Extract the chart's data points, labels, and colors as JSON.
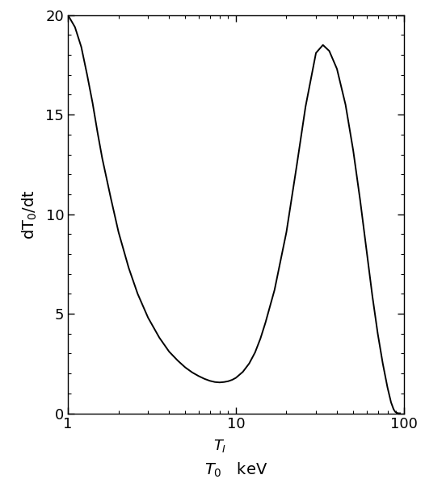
{
  "title": "",
  "ylabel": "dT$_0$/dt",
  "xlim_log": [
    1,
    100
  ],
  "ylim": [
    0,
    20
  ],
  "yticks": [
    0,
    5,
    10,
    15,
    20
  ],
  "xticks": [
    1,
    10,
    100
  ],
  "xticklabels": [
    "1",
    "10",
    "100"
  ],
  "TI_x": 8.0,
  "curve_color": "#000000",
  "background_color": "#ffffff",
  "curve_points_x": [
    1.0,
    1.1,
    1.2,
    1.3,
    1.4,
    1.5,
    1.6,
    1.8,
    2.0,
    2.3,
    2.6,
    3.0,
    3.5,
    4.0,
    4.5,
    5.0,
    5.5,
    6.0,
    6.5,
    7.0,
    7.5,
    8.0,
    8.5,
    9.0,
    9.5,
    10.0,
    11.0,
    12.0,
    13.0,
    14.0,
    15.0,
    17.0,
    20.0,
    23.0,
    26.0,
    30.0,
    33.0,
    36.0,
    40.0,
    45.0,
    50.0,
    55.0,
    60.0,
    65.0,
    70.0,
    75.0,
    80.0,
    84.0,
    87.0,
    89.0,
    91.0,
    93.0,
    95.0
  ],
  "curve_points_y": [
    20.0,
    19.4,
    18.4,
    17.0,
    15.6,
    14.1,
    12.8,
    10.8,
    9.1,
    7.3,
    6.0,
    4.8,
    3.8,
    3.1,
    2.65,
    2.3,
    2.05,
    1.87,
    1.73,
    1.63,
    1.57,
    1.55,
    1.57,
    1.61,
    1.68,
    1.78,
    2.08,
    2.5,
    3.05,
    3.75,
    4.55,
    6.2,
    9.1,
    12.4,
    15.4,
    18.1,
    18.5,
    18.2,
    17.3,
    15.5,
    13.2,
    10.7,
    8.2,
    5.9,
    4.0,
    2.5,
    1.3,
    0.55,
    0.2,
    0.07,
    0.02,
    0.0,
    0.0
  ]
}
